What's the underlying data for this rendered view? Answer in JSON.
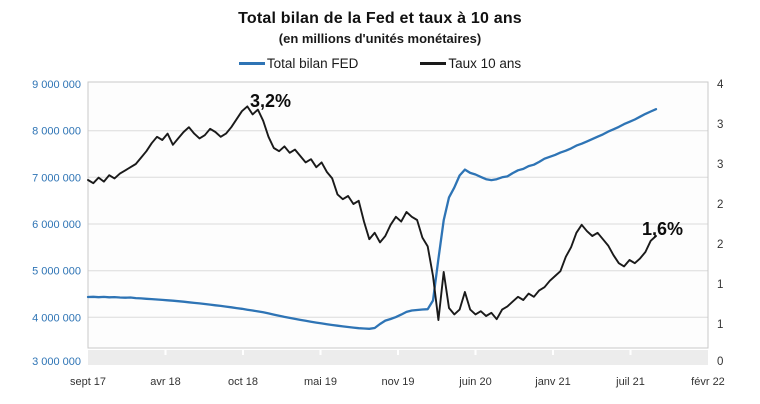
{
  "chart_data": {
    "type": "line",
    "title": "Total bilan de la Fed et taux à 10 ans",
    "subtitle": "(en millions d'unités monétaires)",
    "legend_position": "top",
    "grid": "horizontal",
    "colors": {
      "fed_blue": "#2e74b5",
      "rate_black": "#1a1a1a",
      "gridline": "#dcdcdc",
      "axis_text": "#333333",
      "strip": "#ececec"
    },
    "x": {
      "tick_labels": [
        "sept 17",
        "avr 18",
        "oct 18",
        "mai 19",
        "nov 19",
        "juin 20",
        "janv 21",
        "juil 21",
        "févr 22"
      ],
      "data_start": "sept 17",
      "data_end": "oct 21"
    },
    "y_left": {
      "min": 3000000,
      "max": 9000000,
      "step": 1000000,
      "tick_labels": [
        "9 000 000",
        "8 000 000",
        "7 000 000",
        "6 000 000",
        "5 000 000",
        "4 000 000",
        "3 000 000"
      ],
      "label_color": "#2e74b5"
    },
    "y_right": {
      "min": 0,
      "max": 3.5,
      "step": 0.5,
      "tick_labels": [
        "4",
        "3",
        "3",
        "2",
        "2",
        "1",
        "1",
        "0"
      ],
      "label_color": "#333333"
    },
    "annotations": [
      {
        "label": "3,2%",
        "series": "Taux 10 ans",
        "at": "oct-nov 18"
      },
      {
        "label": "1,6%",
        "series": "Taux 10 ans",
        "at": "oct 21"
      }
    ],
    "series": [
      {
        "name": "Total bilan FED",
        "axis": "left",
        "color": "#2e74b5",
        "values": [
          4435000,
          4440000,
          4432000,
          4438000,
          4430000,
          4434000,
          4426000,
          4420000,
          4424000,
          4412000,
          4406000,
          4398000,
          4390000,
          4382000,
          4374000,
          4366000,
          4356000,
          4346000,
          4334000,
          4322000,
          4310000,
          4298000,
          4286000,
          4272000,
          4258000,
          4244000,
          4230000,
          4214000,
          4198000,
          4182000,
          4164000,
          4146000,
          4128000,
          4108000,
          4084000,
          4058000,
          4034000,
          4010000,
          3988000,
          3966000,
          3946000,
          3926000,
          3906000,
          3888000,
          3870000,
          3852000,
          3836000,
          3820000,
          3806000,
          3792000,
          3780000,
          3768000,
          3760000,
          3755000,
          3772000,
          3858000,
          3930000,
          3964000,
          4004000,
          4058000,
          4116000,
          4146000,
          4158000,
          4168000,
          4174000,
          4360000,
          5250000,
          6080000,
          6570000,
          6780000,
          7040000,
          7165000,
          7095000,
          7060000,
          7010000,
          6960000,
          6940000,
          6960000,
          7000000,
          7020000,
          7090000,
          7150000,
          7180000,
          7240000,
          7270000,
          7330000,
          7400000,
          7440000,
          7480000,
          7530000,
          7570000,
          7620000,
          7680000,
          7720000,
          7770000,
          7820000,
          7870000,
          7920000,
          7980000,
          8030000,
          8080000,
          8140000,
          8190000,
          8240000,
          8300000,
          8360000,
          8410000,
          8460000
        ]
      },
      {
        "name": "Taux 10 ans",
        "axis": "right",
        "color": "#1a1a1a",
        "values": [
          2.3,
          2.26,
          2.33,
          2.28,
          2.36,
          2.32,
          2.38,
          2.42,
          2.46,
          2.5,
          2.58,
          2.66,
          2.76,
          2.84,
          2.8,
          2.88,
          2.74,
          2.82,
          2.9,
          2.96,
          2.88,
          2.82,
          2.86,
          2.94,
          2.9,
          2.84,
          2.88,
          2.96,
          3.06,
          3.16,
          3.22,
          3.12,
          3.18,
          3.04,
          2.84,
          2.7,
          2.66,
          2.72,
          2.64,
          2.68,
          2.6,
          2.52,
          2.56,
          2.46,
          2.52,
          2.4,
          2.32,
          2.12,
          2.06,
          2.1,
          2.0,
          2.04,
          1.78,
          1.56,
          1.64,
          1.52,
          1.6,
          1.74,
          1.84,
          1.78,
          1.9,
          1.84,
          1.8,
          1.58,
          1.47,
          1.1,
          0.55,
          1.15,
          0.7,
          0.62,
          0.68,
          0.9,
          0.68,
          0.62,
          0.66,
          0.6,
          0.64,
          0.56,
          0.68,
          0.72,
          0.78,
          0.84,
          0.8,
          0.88,
          0.84,
          0.92,
          0.96,
          1.04,
          1.1,
          1.16,
          1.34,
          1.46,
          1.64,
          1.74,
          1.66,
          1.6,
          1.64,
          1.56,
          1.48,
          1.36,
          1.26,
          1.22,
          1.3,
          1.26,
          1.32,
          1.4,
          1.54,
          1.6
        ]
      }
    ]
  }
}
